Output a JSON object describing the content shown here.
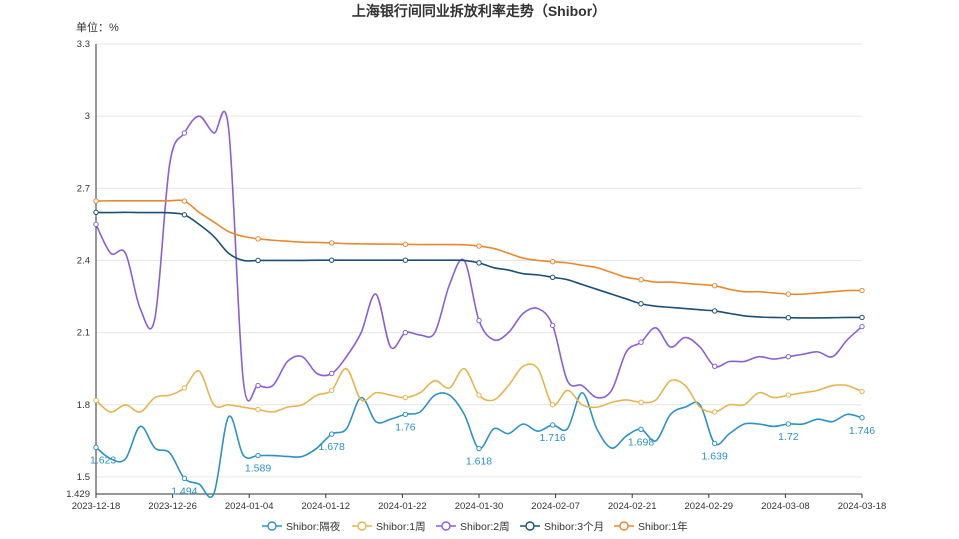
{
  "chart_data": {
    "type": "line",
    "title": "上海银行间同业拆放利率走势（Shibor）",
    "unit_label": "单位：%",
    "ylim": [
      1.429,
      3.3
    ],
    "y_ticks": [
      "1.429",
      "1.5",
      "1.8",
      "2.1",
      "2.4",
      "2.7",
      "3",
      "3.3"
    ],
    "x_ticks": [
      "2023-12-18",
      "2023-12-26",
      "2024-01-04",
      "2024-01-12",
      "2024-01-22",
      "2024-01-30",
      "2024-02-07",
      "2024-02-21",
      "2024-02-29",
      "2024-03-08",
      "2024-03-18"
    ],
    "grid": true,
    "legend_position": "bottom",
    "series": [
      {
        "name": "Shibor:隔夜",
        "color": "#2a93c4",
        "values": [
          1.623,
          1.575,
          1.575,
          1.71,
          1.62,
          1.6,
          1.494,
          1.47,
          1.43,
          1.75,
          1.59,
          1.589,
          1.589,
          1.585,
          1.585,
          1.62,
          1.678,
          1.7,
          1.83,
          1.73,
          1.74,
          1.76,
          1.77,
          1.84,
          1.84,
          1.76,
          1.618,
          1.7,
          1.68,
          1.72,
          1.69,
          1.716,
          1.7,
          1.85,
          1.7,
          1.62,
          1.67,
          1.698,
          1.65,
          1.76,
          1.79,
          1.8,
          1.639,
          1.68,
          1.72,
          1.72,
          1.71,
          1.72,
          1.72,
          1.74,
          1.73,
          1.76,
          1.746
        ]
      },
      {
        "name": "Shibor:1周",
        "color": "#e6b550",
        "values": [
          1.818,
          1.77,
          1.8,
          1.77,
          1.83,
          1.84,
          1.87,
          1.94,
          1.8,
          1.8,
          1.79,
          1.78,
          1.77,
          1.79,
          1.8,
          1.84,
          1.86,
          1.95,
          1.82,
          1.85,
          1.84,
          1.83,
          1.85,
          1.9,
          1.87,
          1.95,
          1.84,
          1.82,
          1.88,
          1.96,
          1.95,
          1.8,
          1.86,
          1.8,
          1.79,
          1.81,
          1.82,
          1.81,
          1.82,
          1.9,
          1.88,
          1.79,
          1.77,
          1.8,
          1.8,
          1.85,
          1.83,
          1.84,
          1.85,
          1.86,
          1.88,
          1.88,
          1.855
        ]
      },
      {
        "name": "Shibor:2周",
        "color": "#8a5fd6",
        "values": [
          2.55,
          2.43,
          2.43,
          2.2,
          2.16,
          2.8,
          2.93,
          3.0,
          2.93,
          2.95,
          1.9,
          1.88,
          1.88,
          1.98,
          2.0,
          1.93,
          1.93,
          2.0,
          2.1,
          2.26,
          2.04,
          2.1,
          2.09,
          2.1,
          2.3,
          2.4,
          2.15,
          2.07,
          2.1,
          2.18,
          2.2,
          2.13,
          1.9,
          1.88,
          1.83,
          1.86,
          2.02,
          2.06,
          2.12,
          2.04,
          2.08,
          2.04,
          1.96,
          1.98,
          1.98,
          2.0,
          1.99,
          2.0,
          2.01,
          2.02,
          2.0,
          2.07,
          2.125
        ]
      },
      {
        "name": "Shibor:3个月",
        "color": "#1c4f76",
        "values": [
          2.6,
          2.599,
          2.6,
          2.599,
          2.599,
          2.598,
          2.59,
          2.55,
          2.5,
          2.43,
          2.4,
          2.4,
          2.4,
          2.4,
          2.4,
          2.401,
          2.401,
          2.401,
          2.401,
          2.401,
          2.401,
          2.401,
          2.401,
          2.401,
          2.401,
          2.4,
          2.39,
          2.37,
          2.36,
          2.345,
          2.34,
          2.33,
          2.32,
          2.3,
          2.28,
          2.26,
          2.24,
          2.22,
          2.21,
          2.205,
          2.2,
          2.195,
          2.19,
          2.18,
          2.17,
          2.165,
          2.163,
          2.162,
          2.161,
          2.161,
          2.162,
          2.163,
          2.163
        ]
      },
      {
        "name": "Shibor:1年",
        "color": "#e8892d",
        "values": [
          2.647,
          2.648,
          2.648,
          2.648,
          2.648,
          2.648,
          2.647,
          2.6,
          2.56,
          2.52,
          2.5,
          2.49,
          2.484,
          2.48,
          2.476,
          2.475,
          2.473,
          2.47,
          2.469,
          2.468,
          2.468,
          2.467,
          2.466,
          2.466,
          2.466,
          2.465,
          2.46,
          2.45,
          2.43,
          2.41,
          2.4,
          2.395,
          2.39,
          2.38,
          2.37,
          2.35,
          2.33,
          2.32,
          2.31,
          2.31,
          2.305,
          2.3,
          2.295,
          2.28,
          2.27,
          2.27,
          2.265,
          2.26,
          2.26,
          2.265,
          2.27,
          2.275,
          2.275
        ]
      }
    ],
    "data_labels": [
      {
        "series": 0,
        "index": 0,
        "text": "1.623"
      },
      {
        "series": 0,
        "index": 6,
        "text": "1.494"
      },
      {
        "series": 0,
        "index": 11,
        "text": "1.589"
      },
      {
        "series": 0,
        "index": 16,
        "text": "1.678"
      },
      {
        "series": 0,
        "index": 21,
        "text": "1.76"
      },
      {
        "series": 0,
        "index": 26,
        "text": "1.618"
      },
      {
        "series": 0,
        "index": 31,
        "text": "1.716"
      },
      {
        "series": 0,
        "index": 37,
        "text": "1.698"
      },
      {
        "series": 0,
        "index": 42,
        "text": "1.639"
      },
      {
        "series": 0,
        "index": 47,
        "text": "1.72"
      },
      {
        "series": 0,
        "index": 52,
        "text": "1.746"
      }
    ],
    "marker_indices": [
      0,
      6,
      11,
      16,
      21,
      26,
      31,
      37,
      42,
      47,
      52
    ]
  }
}
